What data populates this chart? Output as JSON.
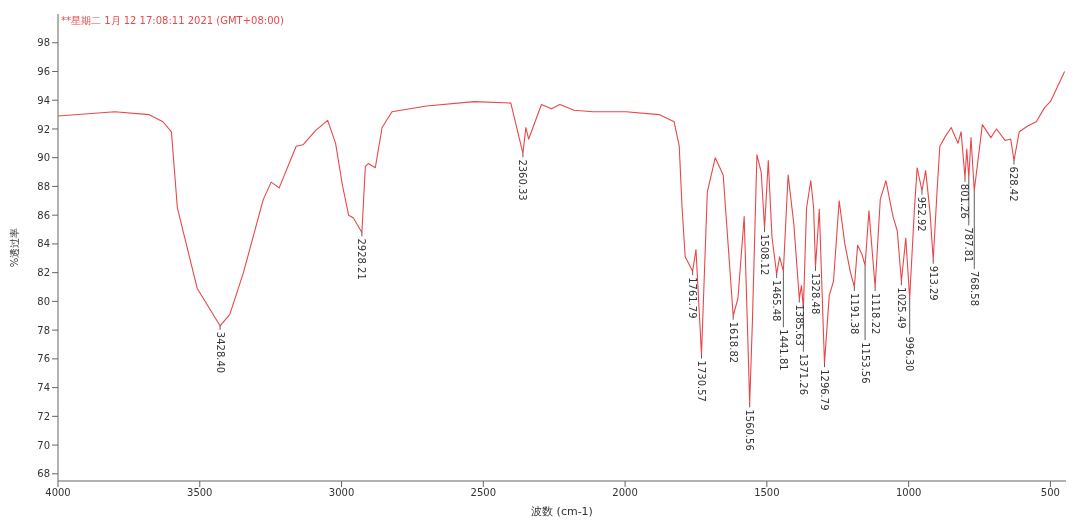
{
  "chart_data": {
    "type": "line",
    "title": "**星期二 1月 12 17:08:11 2021 (GMT+08:00)",
    "xlabel": "波数 (cm-1)",
    "ylabel": "%透过率",
    "xlim": [
      4000,
      445
    ],
    "xticks": [
      4000,
      3500,
      3000,
      2500,
      2000,
      1500,
      1000,
      500
    ],
    "ylim": [
      67.5,
      100
    ],
    "yticks": [
      68,
      70,
      72,
      74,
      76,
      78,
      80,
      82,
      84,
      86,
      88,
      90,
      92,
      94,
      96,
      98
    ],
    "grid": false,
    "marker": "none",
    "line_style": "solid",
    "series": [
      {
        "color": "#e8474a",
        "x": [
          4000,
          3800,
          3680,
          3630,
          3600,
          3579,
          3509,
          3428.4,
          3394,
          3346,
          3276,
          3248,
          3220,
          3160,
          3136,
          3091,
          3049,
          3021,
          2997,
          2975,
          2958,
          2928.21,
          2916,
          2905,
          2881,
          2857,
          2822,
          2700,
          2532,
          2403,
          2360.33,
          2350,
          2340,
          2295,
          2260,
          2230,
          2180,
          2113,
          1997,
          1880,
          1827,
          1809,
          1799,
          1788,
          1761.79,
          1750,
          1730.57,
          1710,
          1682,
          1654,
          1618.82,
          1602,
          1580,
          1567,
          1560.56,
          1551,
          1535,
          1520,
          1508.12,
          1495,
          1482,
          1465.48,
          1455,
          1441.81,
          1425,
          1405,
          1385.63,
          1378,
          1371.26,
          1360,
          1345,
          1335,
          1328.48,
          1315,
          1296.79,
          1280,
          1265,
          1245,
          1225,
          1205,
          1191.38,
          1180,
          1165,
          1153.56,
          1140,
          1118.22,
          1100,
          1080,
          1055,
          1040,
          1025.49,
          1010,
          996.3,
          980,
          970,
          952.92,
          940,
          925,
          913.29,
          900,
          890,
          870,
          850,
          826,
          815,
          801.26,
          795,
          787.81,
          780,
          768.58,
          740,
          710,
          690,
          660,
          640,
          628.42,
          610,
          580,
          550,
          520,
          500,
          450
        ],
        "values": [
          92.9,
          93.2,
          93.0,
          92.5,
          91.8,
          86.5,
          80.9,
          78.3,
          79.1,
          82.0,
          87.1,
          88.3,
          87.9,
          90.8,
          90.9,
          91.9,
          92.6,
          91.0,
          88.1,
          86.0,
          85.8,
          84.8,
          89.4,
          89.6,
          89.3,
          92.1,
          93.2,
          93.6,
          93.9,
          93.8,
          90.3,
          92.1,
          91.3,
          93.7,
          93.4,
          93.7,
          93.3,
          93.2,
          93.2,
          93.0,
          92.5,
          90.8,
          86.5,
          83.1,
          82.1,
          83.6,
          76.3,
          87.6,
          90.0,
          88.8,
          79.0,
          80.2,
          85.9,
          77.3,
          72.9,
          78.6,
          90.2,
          89.0,
          85.1,
          89.8,
          84.5,
          81.9,
          83.1,
          82.1,
          88.8,
          85.4,
          80.2,
          81.1,
          79.5,
          86.5,
          88.4,
          86.5,
          82.4,
          86.4,
          75.7,
          80.4,
          81.4,
          87.0,
          84.0,
          82.0,
          81.0,
          83.9,
          83.3,
          82.5,
          86.3,
          81.0,
          87.1,
          88.4,
          85.9,
          84.9,
          81.4,
          84.4,
          80.2,
          86.3,
          89.3,
          87.7,
          89.1,
          86.3,
          82.9,
          87.6,
          90.8,
          91.5,
          92.1,
          91.0,
          91.8,
          88.6,
          90.6,
          88.6,
          91.4,
          87.7,
          92.3,
          91.4,
          92.0,
          91.2,
          91.3,
          89.8,
          91.8,
          92.2,
          92.5,
          93.5,
          93.9,
          96.0
        ]
      }
    ],
    "annotations": [
      {
        "text": "3428.40",
        "x": 3428.4,
        "y": 78.3
      },
      {
        "text": "2928.21",
        "x": 2928.21,
        "y": 84.8
      },
      {
        "text": "2360.33",
        "x": 2360.33,
        "y": 90.3
      },
      {
        "text": "1761.79",
        "x": 1761.79,
        "y": 82.1
      },
      {
        "text": "1730.57",
        "x": 1730.57,
        "y": 76.3
      },
      {
        "text": "1618.82",
        "x": 1618.82,
        "y": 79.0
      },
      {
        "text": "1560.56",
        "x": 1560.56,
        "y": 72.9
      },
      {
        "text": "1508.12",
        "x": 1508.12,
        "y": 85.1
      },
      {
        "text": "1465.48",
        "x": 1465.48,
        "y": 81.9
      },
      {
        "text": "1441.81",
        "x": 1441.81,
        "y": 82.1
      },
      {
        "text": "1385.63",
        "x": 1385.63,
        "y": 80.2
      },
      {
        "text": "1371.26",
        "x": 1371.26,
        "y": 79.5
      },
      {
        "text": "1328.48",
        "x": 1328.48,
        "y": 82.4
      },
      {
        "text": "1296.79",
        "x": 1296.79,
        "y": 75.7
      },
      {
        "text": "1191.38",
        "x": 1191.38,
        "y": 81.0
      },
      {
        "text": "1153.56",
        "x": 1153.56,
        "y": 82.5
      },
      {
        "text": "1118.22",
        "x": 1118.22,
        "y": 81.0
      },
      {
        "text": "1025.49",
        "x": 1025.49,
        "y": 81.4
      },
      {
        "text": "996.30",
        "x": 996.3,
        "y": 80.2
      },
      {
        "text": "952.92",
        "x": 952.92,
        "y": 87.7
      },
      {
        "text": "913.29",
        "x": 913.29,
        "y": 82.9
      },
      {
        "text": "801.26",
        "x": 801.26,
        "y": 88.6
      },
      {
        "text": "787.81",
        "x": 787.81,
        "y": 88.6
      },
      {
        "text": "768.58",
        "x": 768.58,
        "y": 87.7
      },
      {
        "text": "628.42",
        "x": 628.42,
        "y": 89.8
      }
    ]
  }
}
